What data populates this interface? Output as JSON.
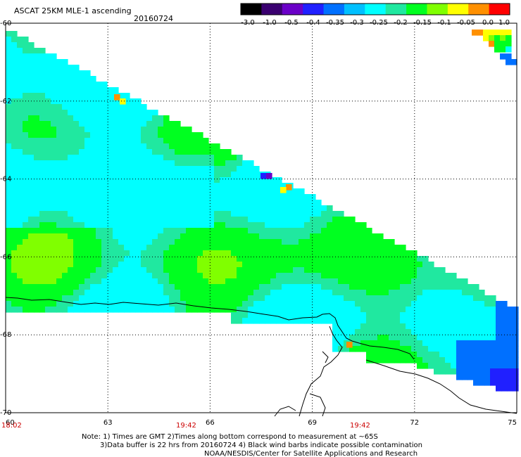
{
  "header": {
    "title": "ASCAT 25KM MLE-1 ascending",
    "date": "20160724"
  },
  "colorbar": {
    "labels": [
      "-3.0",
      "-1.0",
      "-0.5",
      "-0.4",
      "-0.35",
      "-0.3",
      "-0.25",
      "-0.2",
      "-0.15",
      "-0.1",
      "-0.05",
      "0.0",
      "1.0"
    ],
    "colors": [
      "#000000",
      "#3a0070",
      "#6a00c8",
      "#2020ff",
      "#0070ff",
      "#00c0ff",
      "#00ffff",
      "#20e8a0",
      "#00ff20",
      "#80ff00",
      "#ffff00",
      "#ff9000",
      "#ff0000"
    ]
  },
  "axes": {
    "x_ticks": [
      "60",
      "63",
      "66",
      "69",
      "72",
      "75"
    ],
    "y_ticks": [
      "-60",
      "-62",
      "-64",
      "-66",
      "-68",
      "-70"
    ],
    "x_range": [
      60,
      75
    ],
    "y_range": [
      -70,
      -60
    ]
  },
  "time_labels": [
    "18:02",
    "19:42",
    "19:42"
  ],
  "notes": {
    "line1": "Note: 1) Times are GMT 2)Times along bottom correspond to measurement at ~65S",
    "line2": "3)Data buffer is 22 hrs from 20160724 4) Black wind barbs indicate possible contamination",
    "line3": "NOAA/NESDIS/Center for Satellite Applications and Research"
  }
}
